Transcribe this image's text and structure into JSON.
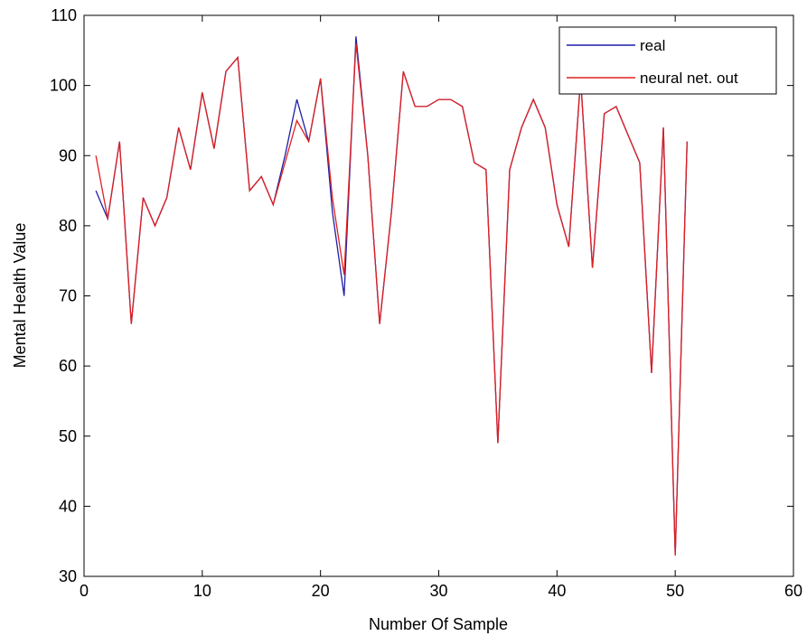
{
  "chart_data": {
    "type": "line",
    "title": "",
    "xlabel": "Number Of Sample",
    "ylabel": "Mental Health Value",
    "xlim": [
      0,
      60
    ],
    "ylim": [
      30,
      110
    ],
    "xticks": [
      0,
      10,
      20,
      30,
      40,
      50,
      60
    ],
    "yticks": [
      30,
      40,
      50,
      60,
      70,
      80,
      90,
      100,
      110
    ],
    "grid": false,
    "legend_position": "top-right",
    "series": [
      {
        "name": "real",
        "color": "#1f1fa8",
        "x": [
          1,
          2,
          3,
          4,
          5,
          6,
          7,
          8,
          9,
          10,
          11,
          12,
          13,
          14,
          15,
          16,
          17,
          18,
          19,
          20,
          21,
          22,
          23,
          24,
          25,
          26,
          27,
          28,
          29,
          30,
          31,
          32,
          33,
          34,
          35,
          36,
          37,
          38,
          39,
          40,
          41,
          42,
          43,
          44,
          45,
          46,
          47,
          48,
          49,
          50,
          51
        ],
        "values": [
          85,
          81,
          92,
          66,
          84,
          80,
          84,
          94,
          88,
          99,
          91,
          102,
          104,
          85,
          87,
          83,
          90,
          98,
          92,
          101,
          82,
          70,
          107,
          90,
          66,
          82,
          102,
          97,
          97,
          98,
          98,
          97,
          89,
          88,
          49,
          88,
          94,
          98,
          94,
          83,
          77,
          101,
          74,
          96,
          97,
          93,
          89,
          59,
          94,
          33,
          92
        ]
      },
      {
        "name": "neural net. out",
        "color": "#e02020",
        "x": [
          1,
          2,
          3,
          4,
          5,
          6,
          7,
          8,
          9,
          10,
          11,
          12,
          13,
          14,
          15,
          16,
          17,
          18,
          19,
          20,
          21,
          22,
          23,
          24,
          25,
          26,
          27,
          28,
          29,
          30,
          31,
          32,
          33,
          34,
          35,
          36,
          37,
          38,
          39,
          40,
          41,
          42,
          43,
          44,
          45,
          46,
          47,
          48,
          49,
          50,
          51
        ],
        "values": [
          90,
          81,
          92,
          66,
          84,
          80,
          84,
          94,
          88,
          99,
          91,
          102,
          104,
          85,
          87,
          83,
          89,
          95,
          92,
          101,
          84,
          73,
          106,
          90,
          66,
          82,
          102,
          97,
          97,
          98,
          98,
          97,
          89,
          88,
          49,
          88,
          94,
          98,
          94,
          83,
          77,
          101,
          74,
          96,
          97,
          93,
          89,
          59,
          94,
          33,
          92
        ]
      }
    ]
  }
}
